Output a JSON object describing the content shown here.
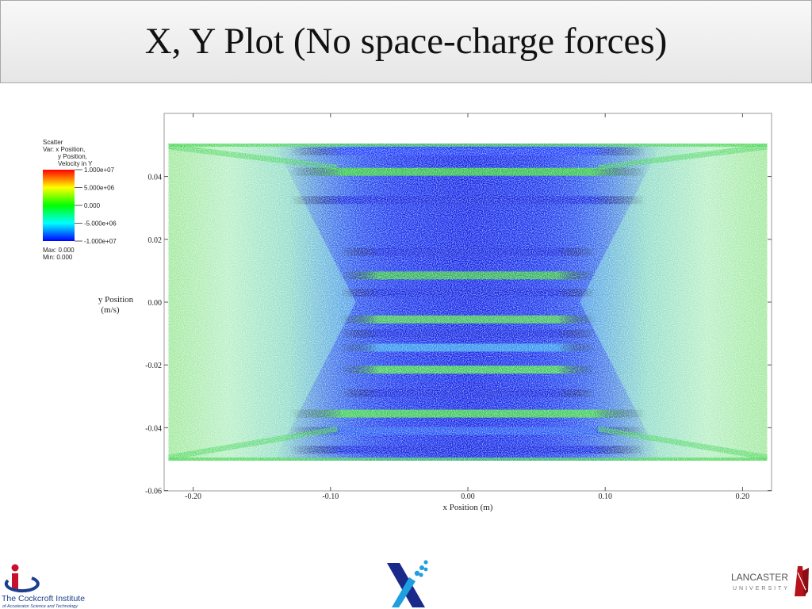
{
  "slide": {
    "title": "X, Y Plot (No space-charge forces)"
  },
  "legend": {
    "plot_type": "Scatter",
    "var_line1": "Var: x Position,",
    "var_line2": "y Position,",
    "var_line3": "Velocity in Y",
    "ticks": [
      "1.000e+07",
      "5.000e+06",
      "0.000",
      "-5.000e+06",
      "-1.000e+07"
    ],
    "max_label": "Max:  0.000",
    "min_label": "Min:  0.000",
    "colors": [
      "#ff0000",
      "#ffff00",
      "#00ff00",
      "#00ffff",
      "#0000ff"
    ]
  },
  "chart_data": {
    "type": "scatter",
    "xlabel": "x Position (m)",
    "ylabel_line1": "y Position",
    "ylabel_line2": "(m/s)",
    "xlim": [
      -0.222,
      0.222
    ],
    "ylim": [
      -0.06,
      0.06
    ],
    "xticks": [
      {
        "v": -0.2,
        "label": "-0.20"
      },
      {
        "v": -0.1,
        "label": "-0.10"
      },
      {
        "v": 0.0,
        "label": "0.00"
      },
      {
        "v": 0.1,
        "label": "0.10"
      },
      {
        "v": 0.2,
        "label": "0.20"
      }
    ],
    "yticks": [
      {
        "v": 0.04,
        "label": "0.04"
      },
      {
        "v": 0.02,
        "label": "0.02"
      },
      {
        "v": 0.0,
        "label": "0.00"
      },
      {
        "v": -0.02,
        "label": "-0.02"
      },
      {
        "v": -0.04,
        "label": "-0.04"
      },
      {
        "v": -0.06,
        "label": "-0.06"
      }
    ],
    "particle_region": {
      "x": [
        -0.218,
        0.218
      ],
      "y": [
        -0.0505,
        0.0505
      ]
    },
    "core_halfwidth": {
      "at_edge": 0.095,
      "at_center": 0.07
    },
    "velocity_range": [
      -10000000,
      10000000
    ],
    "bands": [
      {
        "y": 0.048,
        "color": "#1a3cff"
      },
      {
        "y": 0.0415,
        "color": "#2fd62f"
      },
      {
        "y": 0.0325,
        "color": "#0a1fe0"
      },
      {
        "y": 0.016,
        "color": "#0a1fe0"
      },
      {
        "y": 0.0085,
        "color": "#2fc63f"
      },
      {
        "y": 0.003,
        "color": "#0a1fe0"
      },
      {
        "y": -0.0055,
        "color": "#42d642"
      },
      {
        "y": -0.01,
        "color": "#0a1fe0"
      },
      {
        "y": -0.0145,
        "color": "#2ea0f0"
      },
      {
        "y": -0.0215,
        "color": "#40e040"
      },
      {
        "y": -0.029,
        "color": "#0a1fe0"
      },
      {
        "y": -0.0355,
        "color": "#3ce03c"
      },
      {
        "y": -0.041,
        "color": "#1f58f5"
      },
      {
        "y": -0.047,
        "color": "#0a1fe0"
      }
    ]
  },
  "logos": {
    "cockcroft_line1": "The Cockcroft Institute",
    "cockcroft_line2": "of Accelerator Science and Technology",
    "lancaster_line1": "LANCASTER",
    "lancaster_line2": "UNIVERSITY"
  }
}
